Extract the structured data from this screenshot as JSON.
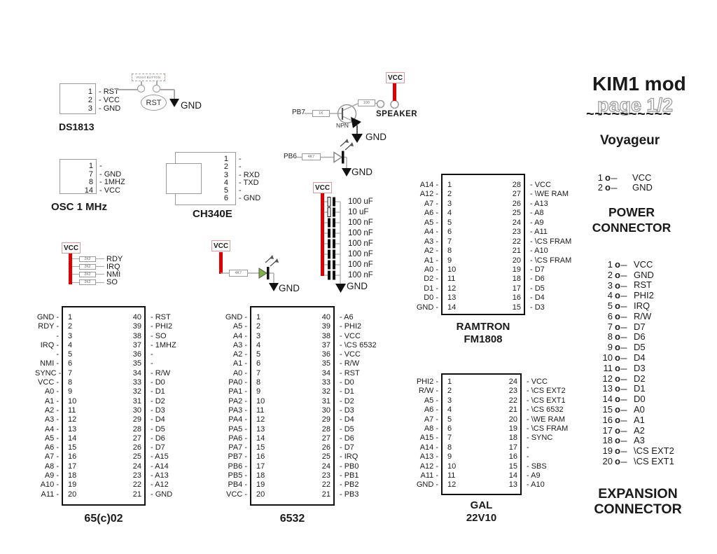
{
  "title": {
    "main": "KIM1 mod",
    "page": "page 1/2",
    "squiggle": "~~~~~~~~~~",
    "author": "Voyageur"
  },
  "colors": {
    "vcc_bar": "#dd0000",
    "led_green": "#7cb342",
    "wire": "#aaaaaa"
  },
  "labels": {
    "gnd": "GND",
    "vcc": "VCC"
  },
  "push_button": {
    "label": "PUSH BUTTON",
    "rst": "RST"
  },
  "sips": {
    "ds1813": {
      "label": "DS1813",
      "pins": [
        [
          "1",
          "RST"
        ],
        [
          "2",
          "VCC"
        ],
        [
          "3",
          "GND"
        ]
      ]
    },
    "osc": {
      "label": "OSC 1 MHz",
      "pins": [
        [
          "1",
          ""
        ],
        [
          "7",
          "GND"
        ],
        [
          "8",
          "1MHZ"
        ],
        [
          "14",
          "VCC"
        ]
      ]
    },
    "ch340e": {
      "label": "CH340E",
      "pins": [
        [
          "1",
          ""
        ],
        [
          "2",
          ""
        ],
        [
          "3",
          "RXD"
        ],
        [
          "4",
          "TXD"
        ],
        [
          "5",
          ""
        ],
        [
          "6",
          "GND"
        ]
      ]
    }
  },
  "pullups": {
    "items": [
      [
        "2K2",
        "RDY"
      ],
      [
        "2K2",
        "IRQ"
      ],
      [
        "2K2",
        "NMI"
      ],
      [
        "2K2",
        "SO"
      ]
    ]
  },
  "speaker": {
    "pb7": "PB7",
    "r1": "1K",
    "npn": "NPN",
    "r2": "100",
    "label": "SPEAKER"
  },
  "led_pb6": {
    "signal": "PB6",
    "r": "4K7"
  },
  "led_6532": {
    "r": "4K7"
  },
  "caps": {
    "values": [
      "100 uF",
      "10 uF",
      "100 nF",
      "100 nF",
      "100 nF",
      "100 nF",
      "100 nF",
      "100 nF"
    ]
  },
  "chips": {
    "cpu": {
      "label": [
        "65(c)02"
      ],
      "left": [
        [
          "1",
          "GND"
        ],
        [
          "2",
          "RDY"
        ],
        [
          "3",
          ""
        ],
        [
          "4",
          "IRQ"
        ],
        [
          "5",
          ""
        ],
        [
          "6",
          "NMI"
        ],
        [
          "7",
          "SYNC"
        ],
        [
          "8",
          "VCC"
        ],
        [
          "9",
          "A0"
        ],
        [
          "10",
          "A1"
        ],
        [
          "11",
          "A2"
        ],
        [
          "12",
          "A3"
        ],
        [
          "13",
          "A4"
        ],
        [
          "14",
          "A5"
        ],
        [
          "15",
          "A6"
        ],
        [
          "16",
          "A7"
        ],
        [
          "17",
          "A8"
        ],
        [
          "18",
          "A9"
        ],
        [
          "19",
          "A10"
        ],
        [
          "20",
          "A11"
        ]
      ],
      "right": [
        [
          "40",
          "RST"
        ],
        [
          "39",
          "PHI2"
        ],
        [
          "38",
          "SO"
        ],
        [
          "37",
          "1MHZ"
        ],
        [
          "36",
          ""
        ],
        [
          "35",
          ""
        ],
        [
          "34",
          "R/W"
        ],
        [
          "33",
          "D0"
        ],
        [
          "32",
          "D1"
        ],
        [
          "31",
          "D2"
        ],
        [
          "30",
          "D3"
        ],
        [
          "29",
          "D4"
        ],
        [
          "28",
          "D5"
        ],
        [
          "27",
          "D6"
        ],
        [
          "26",
          "D7"
        ],
        [
          "25",
          "A15"
        ],
        [
          "24",
          "A14"
        ],
        [
          "23",
          "A13"
        ],
        [
          "22",
          "A12"
        ],
        [
          "21",
          "GND"
        ]
      ]
    },
    "riot": {
      "label": [
        "6532"
      ],
      "left": [
        [
          "1",
          "GND"
        ],
        [
          "2",
          "A5"
        ],
        [
          "3",
          "A4"
        ],
        [
          "4",
          "A3"
        ],
        [
          "5",
          "A2"
        ],
        [
          "6",
          "A1"
        ],
        [
          "7",
          "A0"
        ],
        [
          "8",
          "PA0"
        ],
        [
          "9",
          "PA1"
        ],
        [
          "10",
          "PA2"
        ],
        [
          "11",
          "PA3"
        ],
        [
          "12",
          "PA4"
        ],
        [
          "13",
          "PA5"
        ],
        [
          "14",
          "PA6"
        ],
        [
          "15",
          "PA7"
        ],
        [
          "16",
          "PB7"
        ],
        [
          "17",
          "PB6"
        ],
        [
          "18",
          "PB5"
        ],
        [
          "19",
          "PB4"
        ],
        [
          "20",
          "VCC"
        ]
      ],
      "right": [
        [
          "40",
          "A6"
        ],
        [
          "39",
          "PHI2"
        ],
        [
          "38",
          "VCC"
        ],
        [
          "37",
          "\\CS 6532"
        ],
        [
          "36",
          "VCC"
        ],
        [
          "35",
          "R/W"
        ],
        [
          "34",
          "RST"
        ],
        [
          "33",
          "D0"
        ],
        [
          "32",
          "D1"
        ],
        [
          "31",
          "D2"
        ],
        [
          "30",
          "D3"
        ],
        [
          "29",
          "D4"
        ],
        [
          "28",
          "D5"
        ],
        [
          "27",
          "D6"
        ],
        [
          "26",
          "D7"
        ],
        [
          "25",
          "IRQ"
        ],
        [
          "24",
          "PB0"
        ],
        [
          "23",
          "PB1"
        ],
        [
          "22",
          "PB2"
        ],
        [
          "21",
          "PB3"
        ]
      ]
    },
    "fram": {
      "label": [
        "RAMTRON",
        "FM1808"
      ],
      "left": [
        [
          "1",
          "A14"
        ],
        [
          "2",
          "A12"
        ],
        [
          "3",
          "A7"
        ],
        [
          "4",
          "A6"
        ],
        [
          "5",
          "A5"
        ],
        [
          "6",
          "A4"
        ],
        [
          "7",
          "A3"
        ],
        [
          "8",
          "A2"
        ],
        [
          "9",
          "A1"
        ],
        [
          "10",
          "A0"
        ],
        [
          "11",
          "D2"
        ],
        [
          "12",
          "D1"
        ],
        [
          "13",
          "D0"
        ],
        [
          "14",
          "GND"
        ]
      ],
      "right": [
        [
          "28",
          "VCC"
        ],
        [
          "27",
          "\\WE RAM"
        ],
        [
          "26",
          "A13"
        ],
        [
          "25",
          "A8"
        ],
        [
          "24",
          "A9"
        ],
        [
          "23",
          "A11"
        ],
        [
          "22",
          "\\CS FRAM"
        ],
        [
          "21",
          "A10"
        ],
        [
          "20",
          "\\CS FRAM"
        ],
        [
          "19",
          "D7"
        ],
        [
          "18",
          "D6"
        ],
        [
          "17",
          "D5"
        ],
        [
          "16",
          "D4"
        ],
        [
          "15",
          "D3"
        ]
      ]
    },
    "gal": {
      "label": [
        "GAL",
        "22V10"
      ],
      "left": [
        [
          "1",
          "PHI2"
        ],
        [
          "2",
          "R/W"
        ],
        [
          "3",
          "A5"
        ],
        [
          "4",
          "A6"
        ],
        [
          "5",
          "A7"
        ],
        [
          "6",
          "A8"
        ],
        [
          "7",
          "A15"
        ],
        [
          "8",
          "A14"
        ],
        [
          "9",
          "A13"
        ],
        [
          "10",
          "A12"
        ],
        [
          "11",
          "A11"
        ],
        [
          "12",
          "GND"
        ]
      ],
      "right": [
        [
          "24",
          "VCC"
        ],
        [
          "23",
          "\\CS EXT2"
        ],
        [
          "22",
          "\\CS EXT1"
        ],
        [
          "21",
          "\\CS 6532"
        ],
        [
          "20",
          "\\WE RAM"
        ],
        [
          "19",
          "\\CS FRAM"
        ],
        [
          "18",
          "SYNC"
        ],
        [
          "17",
          ""
        ],
        [
          "16",
          ""
        ],
        [
          "15",
          "SBS"
        ],
        [
          "14",
          "A9"
        ],
        [
          "13",
          "A10"
        ]
      ]
    }
  },
  "power_connector": {
    "heading1": "POWER",
    "heading2": "CONNECTOR",
    "pins": [
      [
        "1",
        "VCC"
      ],
      [
        "2",
        "GND"
      ]
    ]
  },
  "expansion_connector": {
    "heading1": "EXPANSION",
    "heading2": "CONNECTOR",
    "pins": [
      [
        "1",
        "VCC"
      ],
      [
        "2",
        "GND"
      ],
      [
        "3",
        "RST"
      ],
      [
        "4",
        "PHI2"
      ],
      [
        "5",
        "IRQ"
      ],
      [
        "6",
        "R/W"
      ],
      [
        "7",
        "D7"
      ],
      [
        "8",
        "D6"
      ],
      [
        "9",
        "D5"
      ],
      [
        "10",
        "D4"
      ],
      [
        "11",
        "D3"
      ],
      [
        "12",
        "D2"
      ],
      [
        "13",
        "D1"
      ],
      [
        "14",
        "D0"
      ],
      [
        "15",
        "A0"
      ],
      [
        "16",
        "A1"
      ],
      [
        "17",
        "A2"
      ],
      [
        "18",
        "A3"
      ],
      [
        "19",
        "\\CS EXT2"
      ],
      [
        "20",
        "\\CS EXT1"
      ]
    ]
  }
}
